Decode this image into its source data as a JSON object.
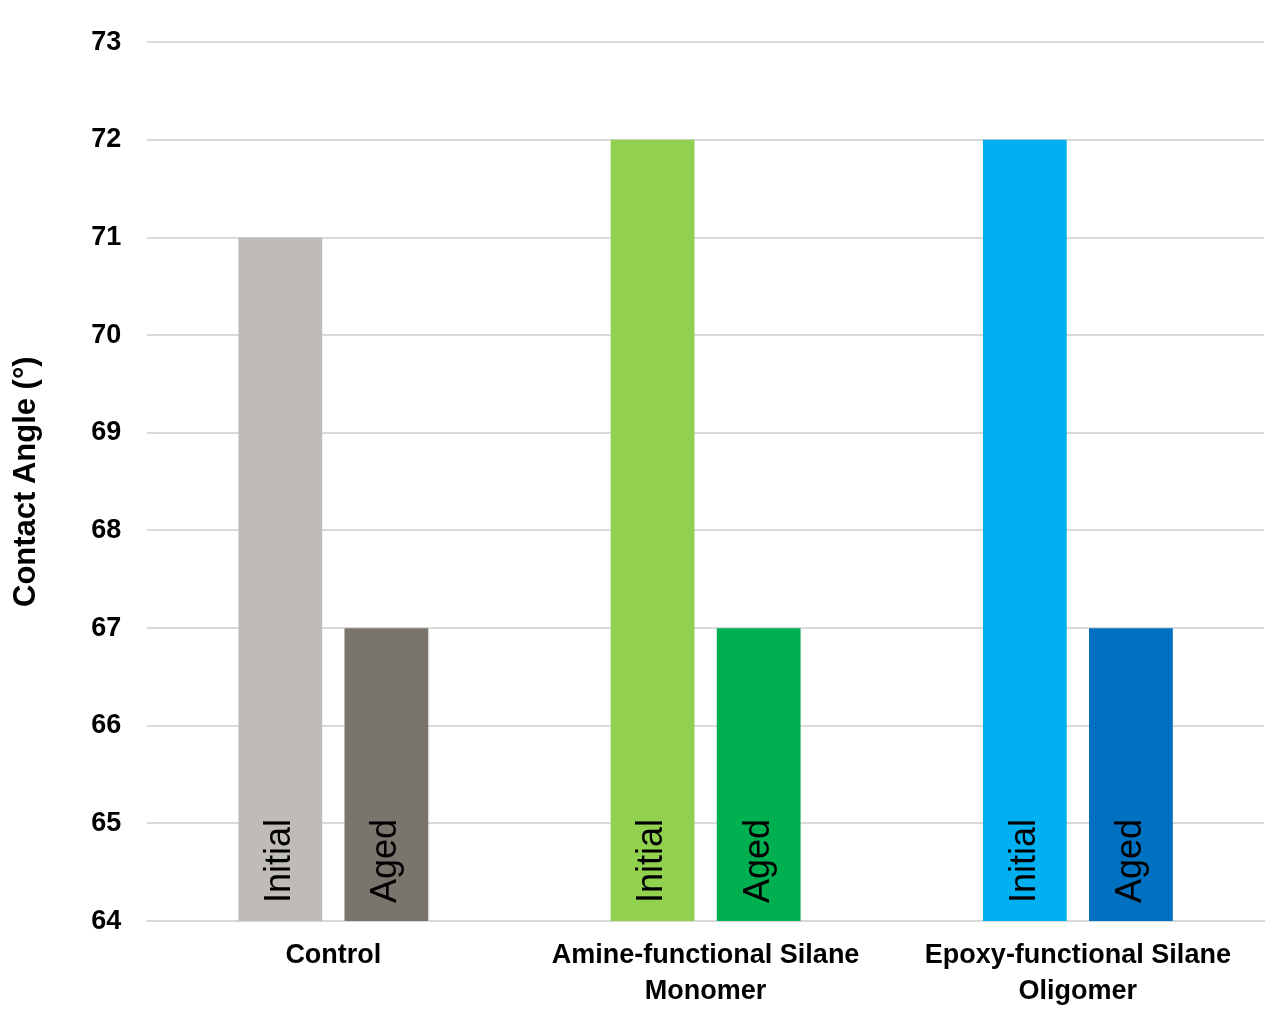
{
  "chart_data": {
    "type": "bar",
    "ylabel": "Contact Angle (°)",
    "categories": [
      "Control",
      "Amine-functional Silane Monomer",
      "Epoxy-functional Silane Oligomer"
    ],
    "series": [
      {
        "name": "Initial",
        "colors": [
          "#bfbbb6",
          "#92d050",
          "#00b0f0"
        ],
        "values": [
          71,
          72,
          72
        ]
      },
      {
        "name": "Aged",
        "colors": [
          "#7a756c",
          "#00b050",
          "#0070c0"
        ],
        "values": [
          67,
          67,
          67
        ]
      }
    ],
    "ylim": [
      64,
      73
    ],
    "yticks": [
      64,
      65,
      66,
      67,
      68,
      69,
      70,
      71,
      72,
      73
    ],
    "grid": "y",
    "legend": false
  }
}
